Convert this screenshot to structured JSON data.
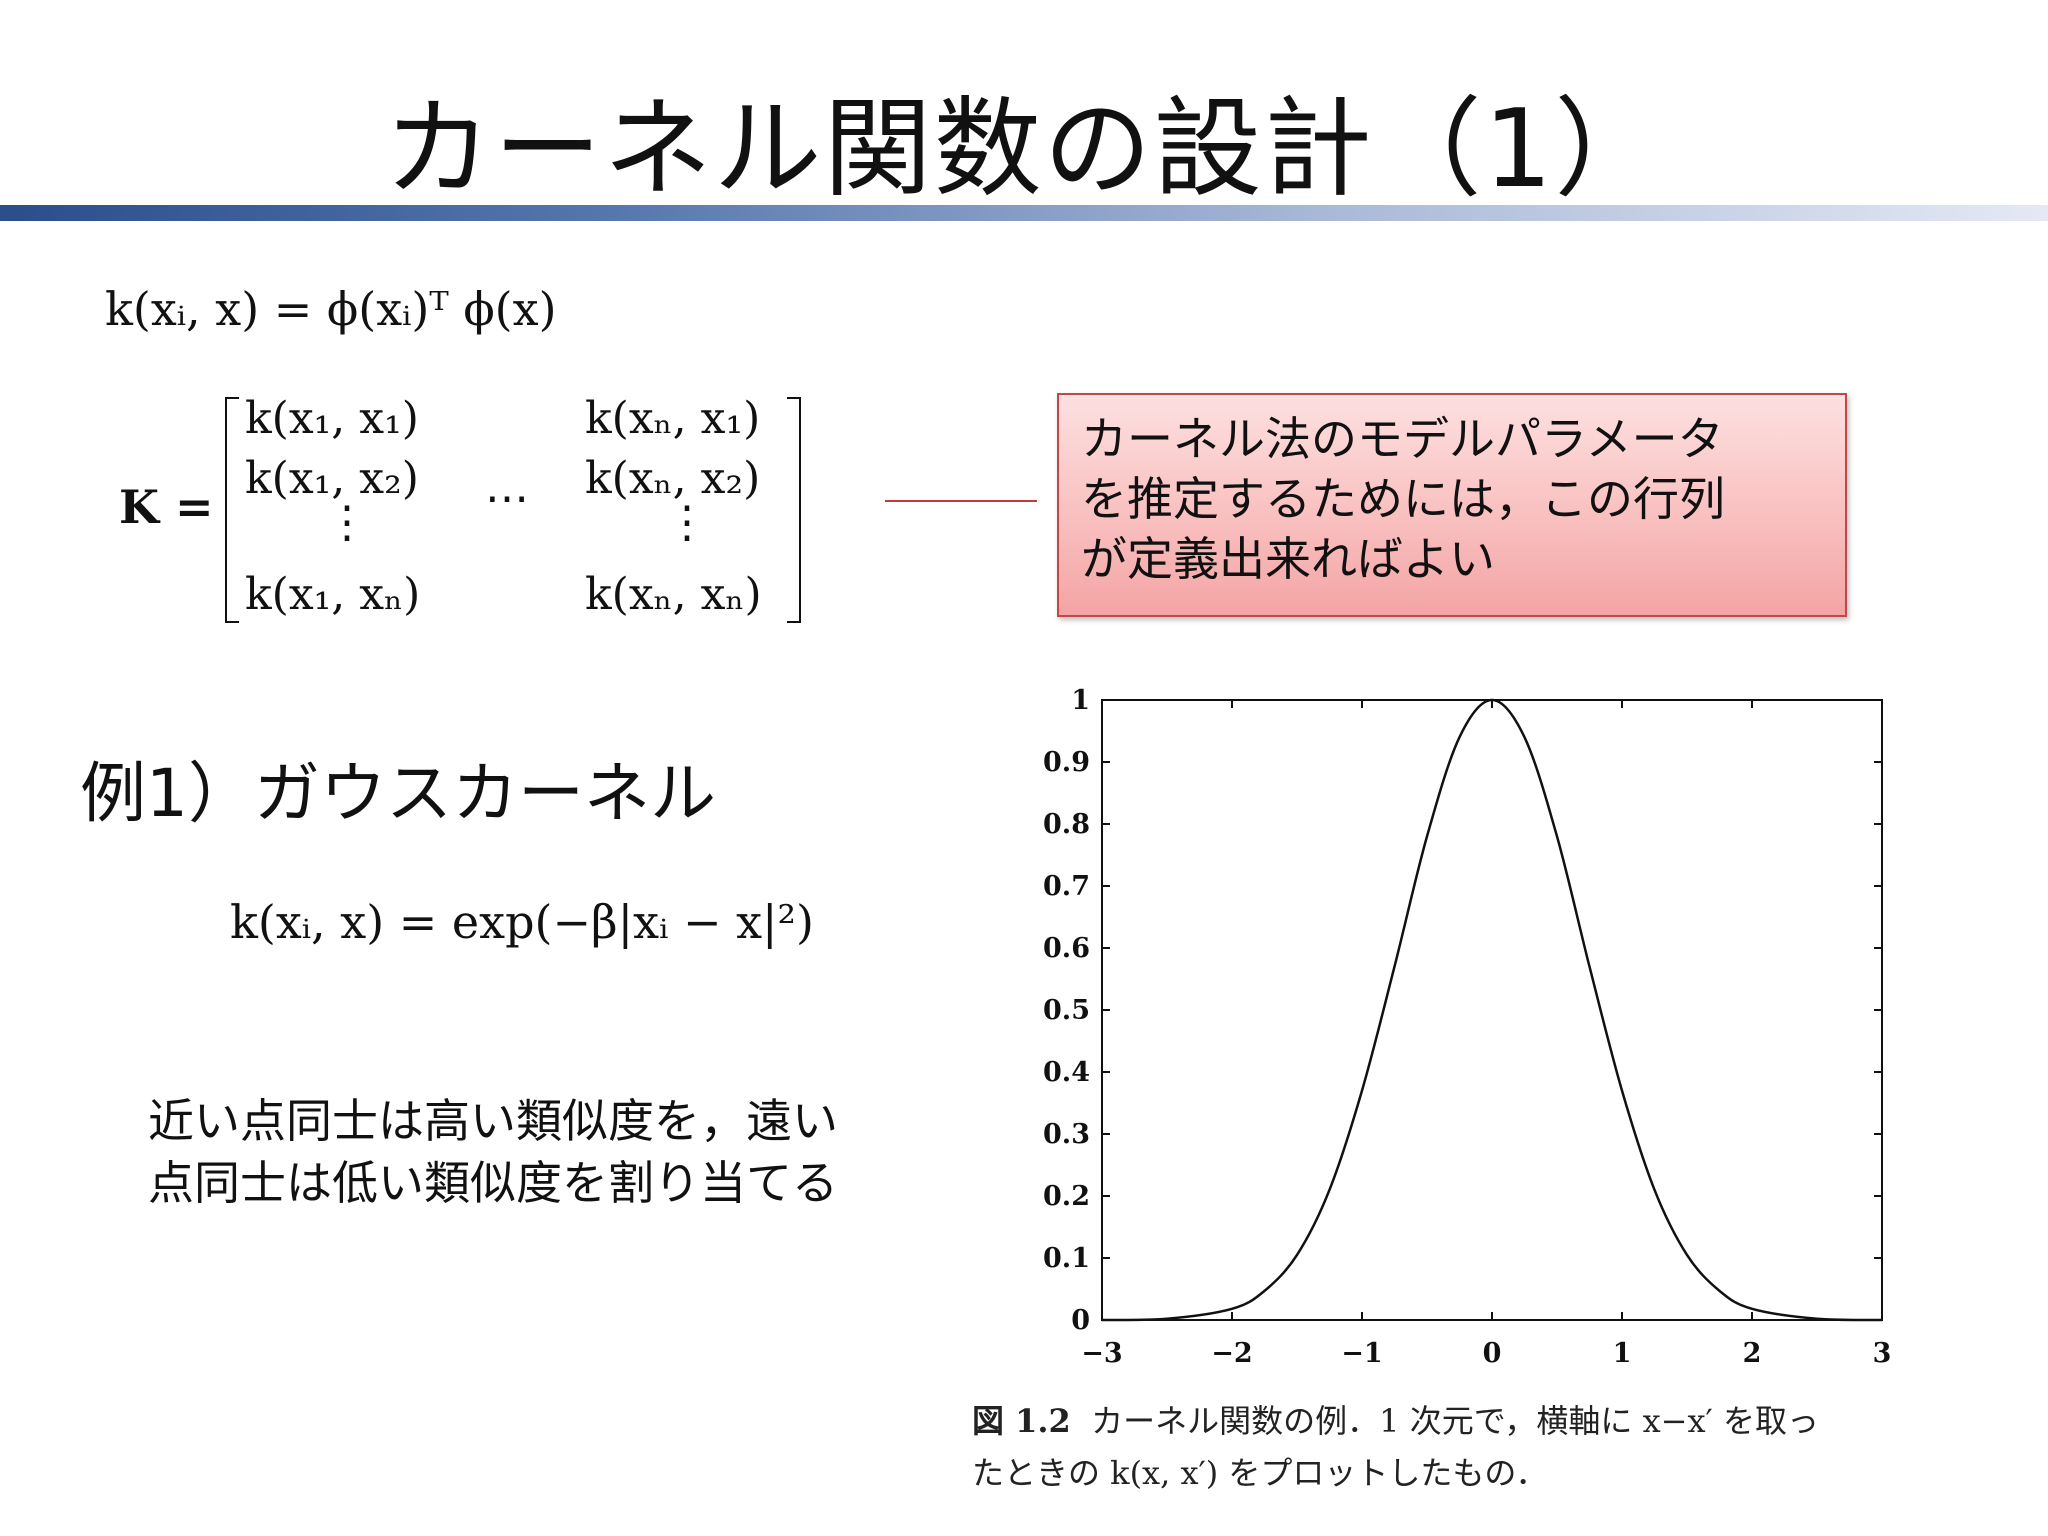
{
  "title": "カーネル関数の設計（1）",
  "eq_kernel_def": "k(xᵢ, x) = ϕ(xᵢ)ᵀ ϕ(x)",
  "gram_matrix": {
    "label": "K =",
    "cells": [
      "k(x₁, x₁)",
      "k(x₁, x₂)",
      "⋮",
      "k(x₁, xₙ)",
      "k(xₙ, x₁)",
      "k(xₙ, x₂)",
      "⋮",
      "k(xₙ, xₙ)"
    ],
    "dots": "⋯"
  },
  "callout": {
    "lines": [
      "カーネル法のモデルパラメータ",
      "を推定するためには，この行列",
      "が定義出来ればよい"
    ]
  },
  "example_heading": "例1）ガウスカーネル",
  "eq_gauss": "k(xᵢ, x) = exp(−β|xᵢ − x|²)",
  "description": {
    "lines": [
      "近い点同士は高い類似度を，遠い",
      "点同士は低い類似度を割り当てる"
    ]
  },
  "chart_data": {
    "type": "line",
    "title": "",
    "xlabel": "",
    "ylabel": "",
    "xlim": [
      -3,
      3
    ],
    "ylim": [
      0,
      1
    ],
    "x_ticks": [
      "−3",
      "−2",
      "−1",
      "0",
      "1",
      "2",
      "3"
    ],
    "y_ticks": [
      "0",
      "0.1",
      "0.2",
      "0.3",
      "0.4",
      "0.5",
      "0.6",
      "0.7",
      "0.8",
      "0.9",
      "1"
    ],
    "grid": false,
    "series": [
      {
        "x": [
          -3,
          -2.5,
          -2,
          -1.75,
          -1.5,
          -1.25,
          -1,
          -0.75,
          -0.5,
          -0.25,
          0,
          0.25,
          0.5,
          0.75,
          1,
          1.25,
          1.5,
          1.75,
          2,
          2.5,
          3
        ],
        "y": [
          0.0,
          0.002,
          0.018,
          0.047,
          0.105,
          0.21,
          0.37,
          0.57,
          0.78,
          0.94,
          1.0,
          0.94,
          0.78,
          0.57,
          0.37,
          0.21,
          0.105,
          0.047,
          0.018,
          0.002,
          0.0
        ],
        "color": "#111111"
      }
    ]
  },
  "caption": {
    "label": "図 1.2",
    "line1": "カーネル関数の例．1 次元で，横軸に x−x′ を取っ",
    "line2": "たときの k(x, x′) をプロットしたもの．"
  },
  "colors": {
    "title_bar_start": "#2b4d8c",
    "callout_fill": "#f9c0c0",
    "callout_border": "#c04848"
  }
}
